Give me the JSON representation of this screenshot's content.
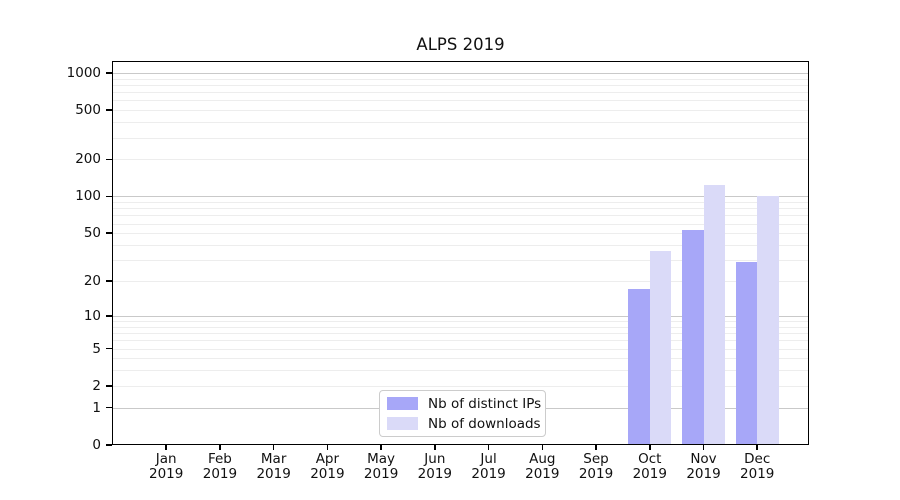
{
  "chart_data": {
    "type": "bar",
    "title": "ALPS 2019",
    "categories": [
      "Jan",
      "Feb",
      "Mar",
      "Apr",
      "May",
      "Jun",
      "Jul",
      "Aug",
      "Sep",
      "Oct",
      "Nov",
      "Dec"
    ],
    "category_year": "2019",
    "series": [
      {
        "name": "Nb of distinct IPs",
        "color": "#a7a7f8",
        "values": [
          0,
          0,
          0,
          0,
          0,
          0,
          0,
          0,
          0,
          17,
          53,
          29
        ]
      },
      {
        "name": "Nb of downloads",
        "color": "#dadaf8",
        "values": [
          0,
          0,
          0,
          0,
          0,
          0,
          0,
          0,
          0,
          36,
          125,
          100
        ]
      }
    ],
    "yscale": "log1p",
    "y_ticks": [
      0,
      1,
      2,
      5,
      10,
      20,
      50,
      100,
      200,
      500,
      1000
    ],
    "y_major_gridlines": [
      1,
      10,
      100,
      1000
    ],
    "ylim": [
      0,
      1269
    ],
    "grid": true,
    "legend_position": "lower-center",
    "colors": {
      "grid_major": "#c9c9c9",
      "grid_minor": "#ededed",
      "axis": "#000000",
      "text": "#111111",
      "background": "#ffffff"
    }
  }
}
